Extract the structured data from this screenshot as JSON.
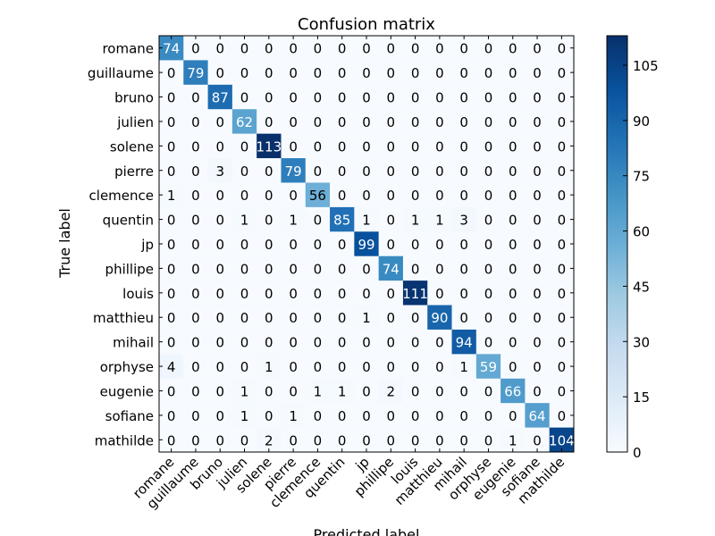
{
  "chart_data": {
    "type": "heatmap",
    "title": "Confusion matrix",
    "xlabel": "Predicted label",
    "ylabel": "True label",
    "labels": [
      "romane",
      "guillaume",
      "bruno",
      "julien",
      "solene",
      "pierre",
      "clemence",
      "quentin",
      "jp",
      "phillipe",
      "louis",
      "matthieu",
      "mihail",
      "orphyse",
      "eugenie",
      "sofiane",
      "mathilde"
    ],
    "matrix": [
      [
        74,
        0,
        0,
        0,
        0,
        0,
        0,
        0,
        0,
        0,
        0,
        0,
        0,
        0,
        0,
        0,
        0
      ],
      [
        0,
        79,
        0,
        0,
        0,
        0,
        0,
        0,
        0,
        0,
        0,
        0,
        0,
        0,
        0,
        0,
        0
      ],
      [
        0,
        0,
        87,
        0,
        0,
        0,
        0,
        0,
        0,
        0,
        0,
        0,
        0,
        0,
        0,
        0,
        0
      ],
      [
        0,
        0,
        0,
        62,
        0,
        0,
        0,
        0,
        0,
        0,
        0,
        0,
        0,
        0,
        0,
        0,
        0
      ],
      [
        0,
        0,
        0,
        0,
        113,
        0,
        0,
        0,
        0,
        0,
        0,
        0,
        0,
        0,
        0,
        0,
        0
      ],
      [
        0,
        0,
        3,
        0,
        0,
        79,
        0,
        0,
        0,
        0,
        0,
        0,
        0,
        0,
        0,
        0,
        0
      ],
      [
        1,
        0,
        0,
        0,
        0,
        0,
        56,
        0,
        0,
        0,
        0,
        0,
        0,
        0,
        0,
        0,
        0
      ],
      [
        0,
        0,
        0,
        1,
        0,
        1,
        0,
        85,
        1,
        0,
        1,
        1,
        3,
        0,
        0,
        0,
        0
      ],
      [
        0,
        0,
        0,
        0,
        0,
        0,
        0,
        0,
        99,
        0,
        0,
        0,
        0,
        0,
        0,
        0,
        0
      ],
      [
        0,
        0,
        0,
        0,
        0,
        0,
        0,
        0,
        0,
        74,
        0,
        0,
        0,
        0,
        0,
        0,
        0
      ],
      [
        0,
        0,
        0,
        0,
        0,
        0,
        0,
        0,
        0,
        0,
        111,
        0,
        0,
        0,
        0,
        0,
        0
      ],
      [
        0,
        0,
        0,
        0,
        0,
        0,
        0,
        0,
        1,
        0,
        0,
        90,
        0,
        0,
        0,
        0,
        0
      ],
      [
        0,
        0,
        0,
        0,
        0,
        0,
        0,
        0,
        0,
        0,
        0,
        0,
        94,
        0,
        0,
        0,
        0
      ],
      [
        4,
        0,
        0,
        0,
        1,
        0,
        0,
        0,
        0,
        0,
        0,
        0,
        1,
        59,
        0,
        0,
        0
      ],
      [
        0,
        0,
        0,
        1,
        0,
        0,
        1,
        1,
        0,
        2,
        0,
        0,
        0,
        0,
        66,
        0,
        0
      ],
      [
        0,
        0,
        0,
        1,
        0,
        1,
        0,
        0,
        0,
        0,
        0,
        0,
        0,
        0,
        0,
        64,
        0
      ],
      [
        0,
        0,
        0,
        0,
        2,
        0,
        0,
        0,
        0,
        0,
        0,
        0,
        0,
        0,
        1,
        0,
        104
      ]
    ],
    "colorbar": {
      "ticks": [
        0,
        15,
        30,
        45,
        60,
        75,
        90,
        105
      ],
      "range": [
        0,
        113
      ],
      "colormap": "Blues"
    },
    "grid": false,
    "legend": "colorbar-right"
  }
}
